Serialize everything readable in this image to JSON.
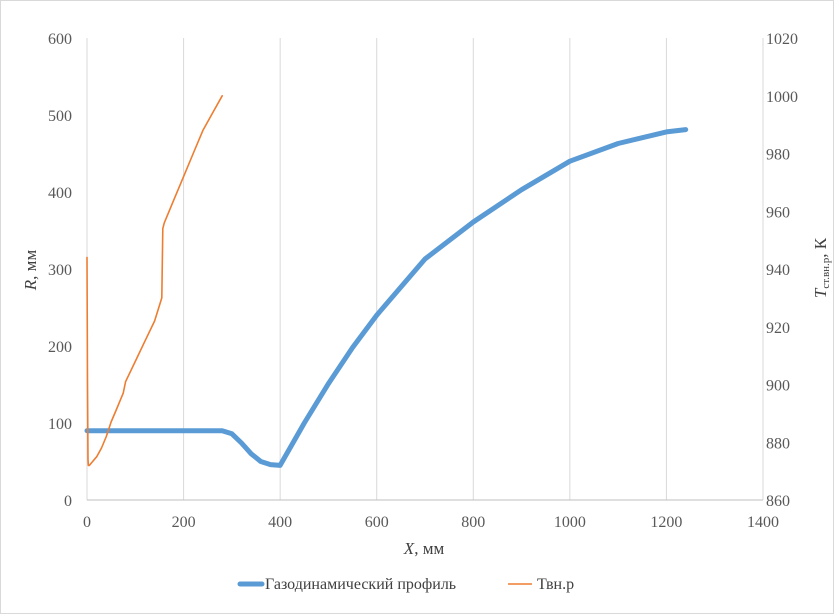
{
  "chart_data": {
    "type": "line",
    "x_axis": {
      "label_italic": "X",
      "label_rest": ", мм",
      "min": 0,
      "max": 1400,
      "ticks": [
        "0",
        "200",
        "400",
        "600",
        "800",
        "1000",
        "1200",
        "1400"
      ]
    },
    "y_axis_left": {
      "label_italic": "R",
      "label_rest": ", мм",
      "min": 0,
      "max": 600,
      "ticks": [
        "0",
        "100",
        "200",
        "300",
        "400",
        "500",
        "600"
      ]
    },
    "y_axis_right": {
      "label_italic": "T",
      "label_sub": "ст.вн.р",
      "label_rest": ", К",
      "min": 860,
      "max": 1020,
      "ticks": [
        "860",
        "880",
        "900",
        "920",
        "940",
        "960",
        "980",
        "1000",
        "1020"
      ]
    },
    "grid": "vertical",
    "legend_position": "bottom",
    "series": [
      {
        "name": "Газодинамический профиль",
        "axis": "left",
        "color": "#5b9bd5",
        "x": [
          0,
          50,
          100,
          150,
          200,
          250,
          280,
          300,
          320,
          340,
          360,
          380,
          400,
          450,
          500,
          550,
          600,
          700,
          800,
          900,
          1000,
          1100,
          1200,
          1240
        ],
        "y": [
          90,
          90,
          90,
          90,
          90,
          90,
          90,
          86,
          74,
          60,
          50,
          46,
          45,
          100,
          151,
          198,
          240,
          313,
          361,
          403,
          440,
          463,
          478,
          481
        ]
      },
      {
        "name": "Твн.р",
        "axis": "right",
        "color": "#ed7d31",
        "x": [
          0,
          1,
          2,
          3,
          5,
          10,
          20,
          30,
          40,
          50,
          60,
          70,
          75,
          80,
          100,
          120,
          140,
          155,
          157,
          160,
          180,
          200,
          220,
          240,
          260,
          280
        ],
        "y": [
          944,
          900,
          874,
          872,
          872,
          873,
          875,
          878,
          882,
          887,
          891,
          895,
          897,
          901,
          908,
          915,
          922,
          930,
          954,
          956,
          964,
          972,
          980,
          988,
          994,
          1000
        ]
      }
    ]
  }
}
